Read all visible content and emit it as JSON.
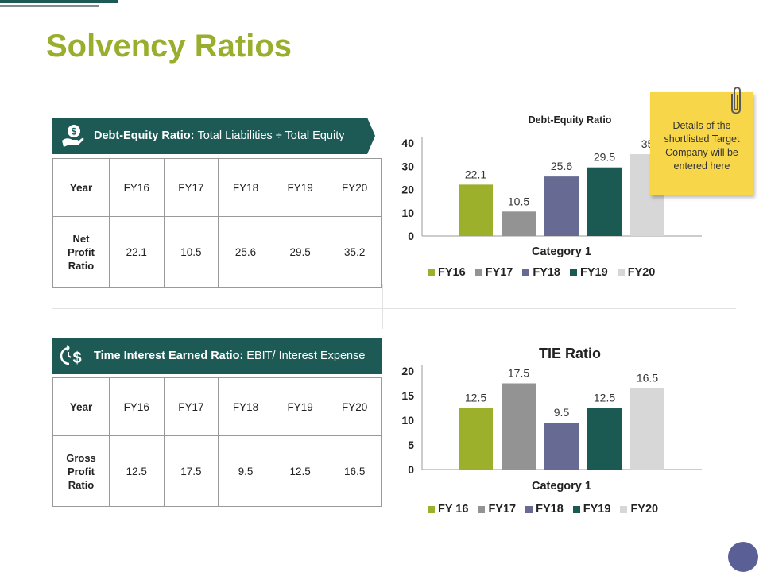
{
  "title": "Solvency Ratios",
  "colors": {
    "fy16": "#9cb02c",
    "fy17": "#939393",
    "fy18": "#676b93",
    "fy19": "#1b5a52",
    "fy20": "#d7d7d7",
    "banner": "#1d5a56",
    "note": "#f7d64a"
  },
  "section1": {
    "banner_bold": "Debt-Equity Ratio:",
    "banner_rest": "Total Liabilities ÷ Total Equity",
    "banner_icon": "dollar-hand-icon",
    "table": {
      "header": [
        "Year",
        "FY16",
        "FY17",
        "FY18",
        "FY19",
        "FY20"
      ],
      "row_label": "Net Profit Ratio",
      "row_label_lines": [
        "Net",
        "Profit",
        "Ratio"
      ],
      "values": [
        "22.1",
        "10.5",
        "25.6",
        "29.5",
        "35.2"
      ]
    }
  },
  "section2": {
    "banner_bold": "Time Interest Earned Ratio:",
    "banner_rest": "EBIT/ Interest Expense",
    "banner_icon": "clock-dollar-icon",
    "table": {
      "header": [
        "Year",
        "FY16",
        "FY17",
        "FY18",
        "FY19",
        "FY20"
      ],
      "row_label": "Gross Profit Ratio",
      "row_label_lines": [
        "Gross",
        "Profit",
        "Ratio"
      ],
      "values": [
        "12.5",
        "17.5",
        "9.5",
        "12.5",
        "16.5"
      ]
    }
  },
  "note": {
    "text": "Details of the shortlisted Target Company will be entered here",
    "icon": "paperclip-icon"
  },
  "chart_data": [
    {
      "type": "bar",
      "title": "Debt-Equity Ratio",
      "categories": [
        "Category 1"
      ],
      "series": [
        {
          "name": "FY16",
          "values": [
            22.1
          ],
          "label": "22.1"
        },
        {
          "name": "FY17",
          "values": [
            10.5
          ],
          "label": "10.5"
        },
        {
          "name": "FY18",
          "values": [
            25.6
          ],
          "label": "25.6"
        },
        {
          "name": "FY19",
          "values": [
            29.5
          ],
          "label": "29.5"
        },
        {
          "name": "FY20",
          "values": [
            35.2
          ],
          "label": "35"
        }
      ],
      "legend": [
        "FY16",
        "FY17",
        "FY18",
        "FY19",
        "FY20"
      ],
      "yticks": [
        "0",
        "10",
        "20",
        "30",
        "40"
      ],
      "ylim": [
        0,
        40
      ],
      "xlabel": "Category 1",
      "ylabel": "",
      "legend_position": "bottom"
    },
    {
      "type": "bar",
      "title": "TIE Ratio",
      "categories": [
        "Category 1"
      ],
      "series": [
        {
          "name": "FY 16",
          "values": [
            12.5
          ],
          "label": "12.5"
        },
        {
          "name": "FY17",
          "values": [
            17.5
          ],
          "label": "17.5"
        },
        {
          "name": "FY18",
          "values": [
            9.5
          ],
          "label": "9.5"
        },
        {
          "name": "FY19",
          "values": [
            12.5
          ],
          "label": "12.5"
        },
        {
          "name": "FY20",
          "values": [
            16.5
          ],
          "label": "16.5"
        }
      ],
      "legend": [
        "FY 16",
        "FY17",
        "FY18",
        "FY19",
        "FY20"
      ],
      "yticks": [
        "0",
        "5",
        "10",
        "15",
        "20"
      ],
      "ylim": [
        0,
        20
      ],
      "xlabel": "Category 1",
      "ylabel": "",
      "legend_position": "bottom"
    }
  ]
}
